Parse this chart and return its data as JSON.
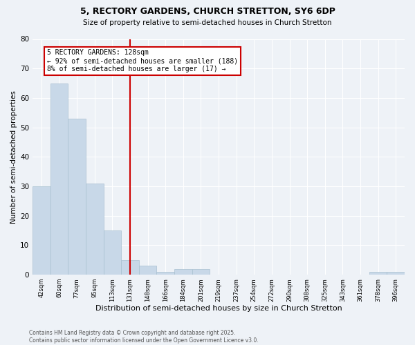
{
  "title1": "5, RECTORY GARDENS, CHURCH STRETTON, SY6 6DP",
  "title2": "Size of property relative to semi-detached houses in Church Stretton",
  "xlabel": "Distribution of semi-detached houses by size in Church Stretton",
  "ylabel": "Number of semi-detached properties",
  "footnote": "Contains HM Land Registry data © Crown copyright and database right 2025.\nContains public sector information licensed under the Open Government Licence v3.0.",
  "bin_labels": [
    "42sqm",
    "60sqm",
    "77sqm",
    "95sqm",
    "113sqm",
    "131sqm",
    "148sqm",
    "166sqm",
    "184sqm",
    "201sqm",
    "219sqm",
    "237sqm",
    "254sqm",
    "272sqm",
    "290sqm",
    "308sqm",
    "325sqm",
    "343sqm",
    "361sqm",
    "378sqm",
    "396sqm"
  ],
  "bar_values": [
    30,
    65,
    53,
    31,
    15,
    5,
    3,
    1,
    2,
    2,
    0,
    0,
    0,
    0,
    0,
    0,
    0,
    0,
    0,
    1,
    1
  ],
  "bar_color": "#c8d8e8",
  "bar_edgecolor": "#a8c0d0",
  "property_line_x": 5,
  "annotation_title": "5 RECTORY GARDENS: 128sqm",
  "annotation_line1": "← 92% of semi-detached houses are smaller (188)",
  "annotation_line2": "8% of semi-detached houses are larger (17) →",
  "annotation_box_color": "#ffffff",
  "annotation_box_edgecolor": "#cc0000",
  "vline_color": "#cc0000",
  "ylim": [
    0,
    80
  ],
  "yticks": [
    0,
    10,
    20,
    30,
    40,
    50,
    60,
    70,
    80
  ],
  "background_color": "#eef2f7",
  "grid_color": "#ffffff",
  "footnote_color": "#555555"
}
